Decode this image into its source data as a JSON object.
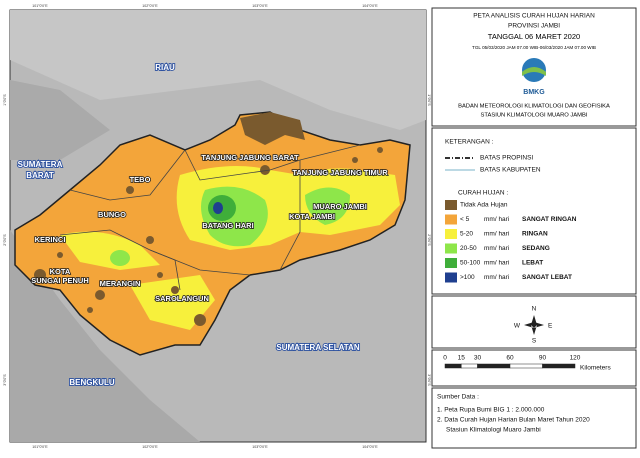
{
  "map": {
    "labels": [
      "RIAU",
      "SUMATERA BARAT",
      "TEBO",
      "BUNGO",
      "KERINCI",
      "KOTA SUNGAI PENUH",
      "MERANGIN",
      "SAROLANGUN",
      "BATANG HARI",
      "TANJUNG JABUNG BARAT",
      "TANJUNG JABUNG TIMUR",
      "MUARO JAMBI",
      "KOTA JAMBI",
      "SUMATERA SELATAN",
      "BENGKULU"
    ],
    "lon_ticks": [
      "101°0'0\"E",
      "102°0'0\"E",
      "103°0'0\"E",
      "104°0'0\"E"
    ],
    "lat_ticks": [
      "1°0'0\"S",
      "2°0'0\"S",
      "3°0'0\"S"
    ]
  },
  "header": {
    "title": [
      "PETA ANALISIS CURAH HUJAN HARIAN",
      "PROVINSI JAMBI",
      "TANGGAL 06 MARET 2020"
    ],
    "period": "TGL 05/03/2020 JAM 07.00 WIB-06/03/2020 JAM 07.00 WIB",
    "logo": "BMKG",
    "agency": [
      "BADAN METEOROLOGI KLIMATOLOGI DAN GEOFISIKA",
      "STASIUN KLIMATOLOGI MUARO JAMBI"
    ]
  },
  "legend": {
    "title": "KETERANGAN :",
    "lines": [
      "BATAS PROPINSI",
      "BATAS KABUPATEN"
    ],
    "rain_title": "CURAH HUJAN :",
    "items": [
      {
        "range": "Tidak Ada Hujan",
        "color": "#7a5a2e"
      },
      {
        "range": "< 5",
        "unit": "mm/ hari",
        "category": "SANGAT RINGAN",
        "color": "#f3a53a"
      },
      {
        "range": "5-20",
        "unit": "mm/ hari",
        "category": "RINGAN",
        "color": "#f7f03c"
      },
      {
        "range": "20-50",
        "unit": "mm/ hari",
        "category": "SEDANG",
        "color": "#8ee64a"
      },
      {
        "range": "50-100",
        "unit": "mm/ hari",
        "category": "LEBAT",
        "color": "#3fae3a"
      },
      {
        "range": ">100",
        "unit": "mm/ hari",
        "category": "SANGAT LEBAT",
        "color": "#1f3f8f"
      }
    ]
  },
  "compass": [
    "N",
    "E",
    "S",
    "W"
  ],
  "scale": {
    "ticks": [
      0,
      15,
      30,
      60,
      90,
      120
    ],
    "unit": "Kilometers"
  },
  "sources": {
    "title": "Sumber Data :",
    "items": [
      "1. Peta Rupa Bumi BIG 1 : 2.000.000",
      "2. Data Curah Hujan Harian Bulan Maret Tahun 2020",
      "Stasiun Klimatologi Muaro Jambi"
    ]
  }
}
